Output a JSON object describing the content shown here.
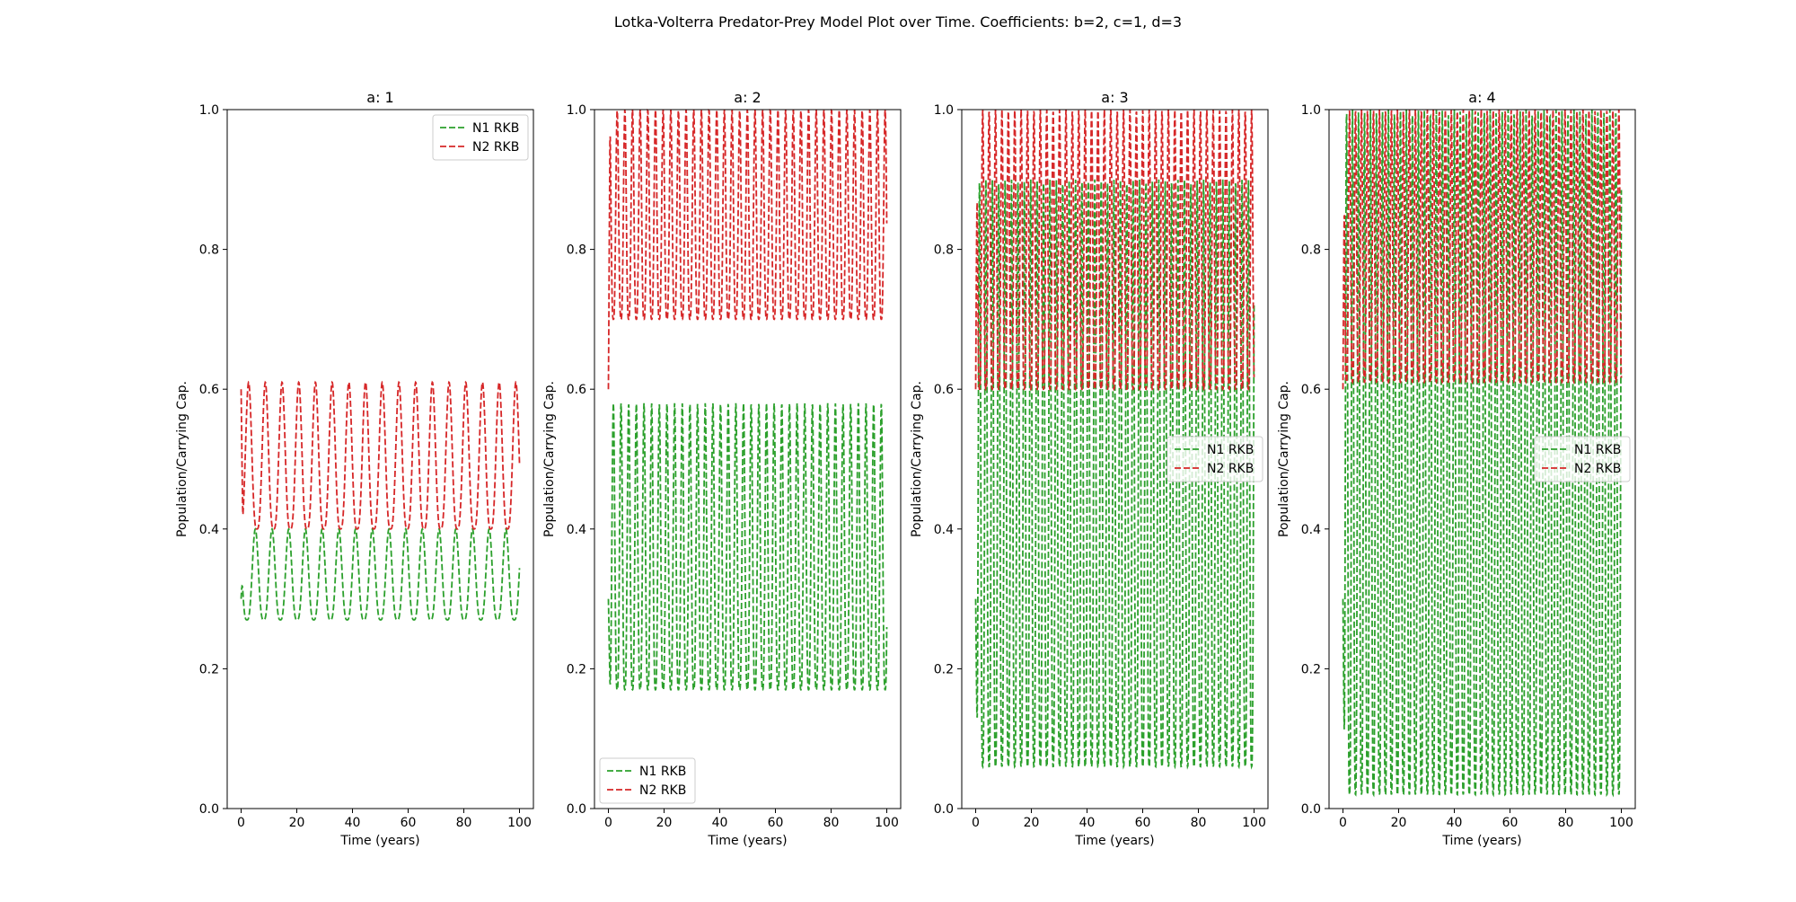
{
  "figure": {
    "suptitle": "Lotka-Volterra Predator-Prey Model Plot over Time. Coefficients: b=2, c=1, d=3"
  },
  "colors": {
    "n1": "#2ca02c",
    "n2": "#d62728",
    "axis": "#000000",
    "legend_border": "#cccccc"
  },
  "chart_data": [
    {
      "type": "line",
      "title": "a: 1",
      "xlabel": "Time (years)",
      "ylabel": "Population/Carrying Cap.",
      "xlim": [
        -5,
        105
      ],
      "ylim": [
        0.0,
        1.0
      ],
      "xticks": [
        0,
        20,
        40,
        60,
        80,
        100
      ],
      "yticks": [
        0.0,
        0.2,
        0.4,
        0.6,
        0.8,
        1.0
      ],
      "legend": "upper right",
      "series": [
        {
          "name": "N1 RKB",
          "style": "dashed",
          "osc": {
            "period": 6.0,
            "start": 0.3,
            "min": 0.27,
            "max": 0.4,
            "phase": 0.15
          }
        },
        {
          "name": "N2 RKB",
          "style": "dashed",
          "osc": {
            "period": 6.0,
            "start": 0.6,
            "min": 0.4,
            "max": 0.61,
            "phase": 0.55
          }
        }
      ]
    },
    {
      "type": "line",
      "title": "a: 2",
      "xlabel": "Time (years)",
      "ylabel": "Population/Carrying Cap.",
      "xlim": [
        -5,
        105
      ],
      "ylim": [
        0.0,
        1.0
      ],
      "xticks": [
        0,
        20,
        40,
        60,
        80,
        100
      ],
      "yticks": [
        0.0,
        0.2,
        0.4,
        0.6,
        0.8,
        1.0
      ],
      "legend": "lower left",
      "series": [
        {
          "name": "N1 RKB",
          "style": "dashed",
          "osc": {
            "period": 2.75,
            "start": 0.3,
            "min": 0.17,
            "max": 0.58,
            "phase": 0.35
          }
        },
        {
          "name": "N2 RKB",
          "style": "dashed",
          "osc": {
            "period": 2.75,
            "start": 0.6,
            "min": 0.7,
            "max": 1.0,
            "phase": 0.85
          }
        }
      ]
    },
    {
      "type": "line",
      "title": "a: 3",
      "xlabel": "Time (years)",
      "ylabel": "Population/Carrying Cap.",
      "xlim": [
        -5,
        105
      ],
      "ylim": [
        0.0,
        1.0
      ],
      "xticks": [
        0,
        20,
        40,
        60,
        80,
        100
      ],
      "yticks": [
        0.0,
        0.2,
        0.4,
        0.6,
        0.8,
        1.0
      ],
      "legend": "center right",
      "series": [
        {
          "name": "N1 RKB",
          "style": "dashed",
          "osc": {
            "period": 2.3,
            "start": 0.3,
            "min": 0.06,
            "max": 0.9,
            "phase": 0.4
          }
        },
        {
          "name": "N2 RKB",
          "style": "dashed",
          "osc": {
            "period": 2.3,
            "start": 0.6,
            "min": 0.6,
            "max": 1.0,
            "phase": 0.9
          }
        }
      ]
    },
    {
      "type": "line",
      "title": "a: 4",
      "xlabel": "Time (years)",
      "ylabel": "Population/Carrying Cap.",
      "xlim": [
        -5,
        105
      ],
      "ylim": [
        0.0,
        1.0
      ],
      "xticks": [
        0,
        20,
        40,
        60,
        80,
        100
      ],
      "yticks": [
        0.0,
        0.2,
        0.4,
        0.6,
        0.8,
        1.0
      ],
      "legend": "center right",
      "series": [
        {
          "name": "N1 RKB",
          "style": "dashed",
          "osc": {
            "period": 2.15,
            "start": 0.3,
            "min": 0.02,
            "max": 1.0,
            "phase": 0.4
          }
        },
        {
          "name": "N2 RKB",
          "style": "dashed",
          "osc": {
            "period": 2.15,
            "start": 0.6,
            "min": 0.61,
            "max": 1.0,
            "phase": 0.9
          }
        }
      ]
    }
  ]
}
